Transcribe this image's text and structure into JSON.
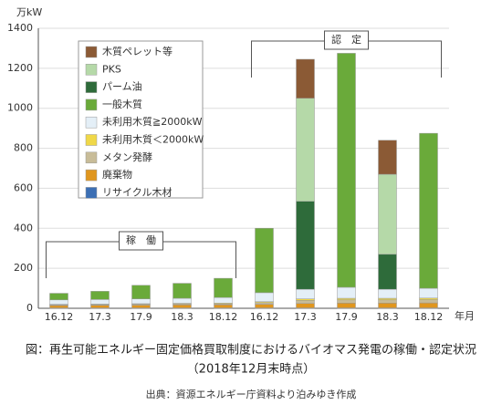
{
  "chart_data": {
    "type": "stacked_bar",
    "title": "図：再生可能エネルギー固定価格買取制度におけるバイオマス発電の稼働・認定状況",
    "subtitle": "（2018年12月末時点）",
    "source": "出典：資源エネルギー庁資料より泊みゆき作成",
    "y_label": "万kW",
    "x_label": "年月",
    "annotations": [
      "稼　働",
      "認　定"
    ],
    "categories": [
      "16.12",
      "17.3",
      "17.9",
      "18.3",
      "18.12",
      "16.12",
      "17.3",
      "17.9",
      "18.3",
      "18.12"
    ],
    "series": [
      {
        "name": "リサイクル木材",
        "color": "#3c6fb4",
        "values": [
          2,
          2,
          2,
          2,
          2,
          2,
          2,
          2,
          2,
          2
        ]
      },
      {
        "name": "廃棄物",
        "color": "#e0961e",
        "values": [
          12,
          13,
          14,
          15,
          16,
          18,
          22,
          24,
          24,
          25
        ]
      },
      {
        "name": "メタン発酵",
        "color": "#c8bc98",
        "values": [
          3,
          3,
          4,
          4,
          4,
          8,
          15,
          16,
          16,
          16
        ]
      },
      {
        "name": "未利用木質＜2000kW",
        "color": "#f0d848",
        "values": [
          3,
          3,
          3,
          4,
          4,
          5,
          8,
          8,
          8,
          8
        ]
      },
      {
        "name": "未利用木質≧2000kW",
        "color": "#e4eff7",
        "values": [
          22,
          23,
          24,
          25,
          28,
          45,
          48,
          55,
          45,
          49
        ]
      },
      {
        "name": "一般木質",
        "color": "#6aaa3a",
        "values": [
          33,
          41,
          68,
          75,
          96,
          322,
          0,
          1170,
          0,
          775
        ]
      },
      {
        "name": "パーム油",
        "color": "#2e6b3a",
        "values": [
          0,
          0,
          0,
          0,
          0,
          0,
          440,
          0,
          175,
          0
        ]
      },
      {
        "name": "PKS",
        "color": "#b5d9a8",
        "values": [
          0,
          0,
          0,
          0,
          0,
          0,
          515,
          0,
          400,
          0
        ]
      },
      {
        "name": "木質ペレット等",
        "color": "#8b5a35",
        "values": [
          0,
          0,
          0,
          0,
          0,
          0,
          195,
          0,
          170,
          0
        ]
      }
    ],
    "ylim": [
      0,
      1400
    ],
    "yticks": [
      0,
      200,
      400,
      600,
      800,
      1000,
      1200,
      1400
    ],
    "grid": true
  }
}
